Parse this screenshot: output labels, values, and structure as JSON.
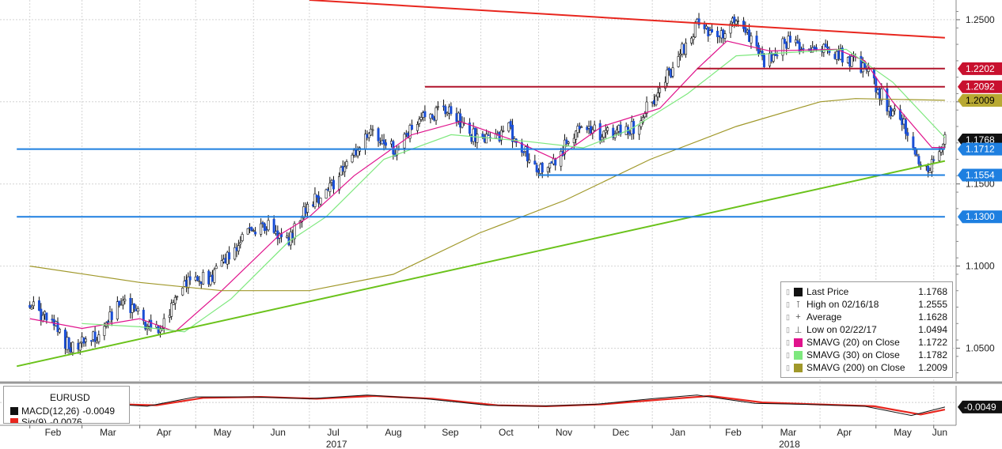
{
  "chart_data": {
    "type": "candlestick",
    "title": "",
    "x_months": [
      "Feb",
      "Mar",
      "Apr",
      "May",
      "Jun",
      "Jul",
      "Aug",
      "Sep",
      "Oct",
      "Nov",
      "Dec",
      "Jan",
      "Feb",
      "Mar",
      "Apr",
      "May",
      "Jun"
    ],
    "x_years": [
      {
        "label": "2017",
        "after": "Jul"
      },
      {
        "label": "2018",
        "after": "Mar"
      }
    ],
    "y_ticks": [
      "1.2500",
      "1.2000",
      "1.1500",
      "1.1000",
      "1.0500"
    ],
    "ylim": [
      1.03,
      1.262
    ],
    "price_path": [
      [
        "2017-02-01",
        1.077
      ],
      [
        "2017-02-15",
        1.062
      ],
      [
        "2017-02-22",
        1.051
      ],
      [
        "2017-03-08",
        1.056
      ],
      [
        "2017-03-24",
        1.08
      ],
      [
        "2017-04-03",
        1.066
      ],
      [
        "2017-04-12",
        1.062
      ],
      [
        "2017-04-26",
        1.09
      ],
      [
        "2017-05-10",
        1.093
      ],
      [
        "2017-05-26",
        1.118
      ],
      [
        "2017-06-05",
        1.126
      ],
      [
        "2017-06-20",
        1.116
      ],
      [
        "2017-06-30",
        1.138
      ],
      [
        "2017-07-10",
        1.144
      ],
      [
        "2017-07-28",
        1.172
      ],
      [
        "2017-08-04",
        1.181
      ],
      [
        "2017-08-17",
        1.17
      ],
      [
        "2017-08-30",
        1.191
      ],
      [
        "2017-09-15",
        1.195
      ],
      [
        "2017-09-25",
        1.18
      ],
      [
        "2017-10-06",
        1.176
      ],
      [
        "2017-10-16",
        1.183
      ],
      [
        "2017-10-30",
        1.162
      ],
      [
        "2017-11-07",
        1.16
      ],
      [
        "2017-11-25",
        1.188
      ],
      [
        "2017-12-05",
        1.18
      ],
      [
        "2017-12-22",
        1.185
      ],
      [
        "2018-01-04",
        1.205
      ],
      [
        "2018-01-15",
        1.227
      ],
      [
        "2018-01-25",
        1.246
      ],
      [
        "2018-02-05",
        1.24
      ],
      [
        "2018-02-16",
        1.252
      ],
      [
        "2018-03-01",
        1.224
      ],
      [
        "2018-03-15",
        1.238
      ],
      [
        "2018-03-28",
        1.232
      ],
      [
        "2018-04-09",
        1.23
      ],
      [
        "2018-04-25",
        1.22
      ],
      [
        "2018-05-07",
        1.198
      ],
      [
        "2018-05-15",
        1.188
      ],
      [
        "2018-05-24",
        1.164
      ],
      [
        "2018-05-29",
        1.156
      ],
      [
        "2018-06-07",
        1.178
      ]
    ],
    "series": [
      {
        "name": "SMAVG (20) on Close",
        "color": "#e0138c",
        "points": [
          [
            "2017-02-01",
            1.068
          ],
          [
            "2017-03-01",
            1.062
          ],
          [
            "2017-04-01",
            1.068
          ],
          [
            "2017-04-20",
            1.06
          ],
          [
            "2017-05-15",
            1.085
          ],
          [
            "2017-06-15",
            1.119
          ],
          [
            "2017-07-01",
            1.13
          ],
          [
            "2017-07-25",
            1.155
          ],
          [
            "2017-08-25",
            1.18
          ],
          [
            "2017-09-20",
            1.188
          ],
          [
            "2017-10-20",
            1.176
          ],
          [
            "2017-11-10",
            1.165
          ],
          [
            "2017-12-05",
            1.185
          ],
          [
            "2018-01-05",
            1.196
          ],
          [
            "2018-01-25",
            1.22
          ],
          [
            "2018-02-10",
            1.237
          ],
          [
            "2018-03-05",
            1.231
          ],
          [
            "2018-04-10",
            1.232
          ],
          [
            "2018-04-25",
            1.225
          ],
          [
            "2018-05-10",
            1.2
          ],
          [
            "2018-05-31",
            1.1722
          ],
          [
            "2018-06-07",
            1.1722
          ]
        ]
      },
      {
        "name": "SMAVG (30) on Close",
        "color": "#7ee87e",
        "points": [
          [
            "2017-03-01",
            1.065
          ],
          [
            "2017-04-01",
            1.063
          ],
          [
            "2017-04-25",
            1.06
          ],
          [
            "2017-05-20",
            1.08
          ],
          [
            "2017-06-20",
            1.115
          ],
          [
            "2017-07-10",
            1.13
          ],
          [
            "2017-08-10",
            1.165
          ],
          [
            "2017-09-15",
            1.18
          ],
          [
            "2017-10-25",
            1.176
          ],
          [
            "2017-11-25",
            1.172
          ],
          [
            "2017-12-20",
            1.183
          ],
          [
            "2018-01-20",
            1.205
          ],
          [
            "2018-02-15",
            1.228
          ],
          [
            "2018-03-15",
            1.23
          ],
          [
            "2018-04-15",
            1.232
          ],
          [
            "2018-05-10",
            1.212
          ],
          [
            "2018-06-07",
            1.1782
          ]
        ]
      },
      {
        "name": "SMAVG (200) on Close",
        "color": "#a0982a",
        "points": [
          [
            "2017-02-01",
            1.1
          ],
          [
            "2017-04-01",
            1.09
          ],
          [
            "2017-05-15",
            1.085
          ],
          [
            "2017-07-01",
            1.085
          ],
          [
            "2017-08-15",
            1.095
          ],
          [
            "2017-09-30",
            1.12
          ],
          [
            "2017-11-15",
            1.14
          ],
          [
            "2017-12-31",
            1.165
          ],
          [
            "2018-02-15",
            1.185
          ],
          [
            "2018-04-01",
            1.2
          ],
          [
            "2018-04-20",
            1.202
          ],
          [
            "2018-06-07",
            1.2009
          ]
        ]
      }
    ],
    "trend_lines": [
      {
        "color": "#e8261e",
        "points": [
          [
            "2017-07-01",
            1.262
          ],
          [
            "2018-06-07",
            1.239
          ]
        ]
      },
      {
        "color": "#6ac21a",
        "points": [
          [
            "2017-01-25",
            1.039
          ],
          [
            "2018-06-07",
            1.164
          ]
        ]
      },
      {
        "color": "#b0142c",
        "points": [
          [
            "2018-01-25",
            1.2202
          ],
          [
            "2018-06-07",
            1.2202
          ]
        ]
      },
      {
        "color": "#b0142c",
        "points": [
          [
            "2017-09-01",
            1.2092
          ],
          [
            "2018-06-07",
            1.2092
          ]
        ]
      },
      {
        "color": "#1e7fe0",
        "points": [
          [
            "2017-01-25",
            1.1712
          ],
          [
            "2018-06-07",
            1.1712
          ]
        ]
      },
      {
        "color": "#1e7fe0",
        "points": [
          [
            "2017-11-01",
            1.1554
          ],
          [
            "2018-06-07",
            1.1554
          ]
        ]
      },
      {
        "color": "#1e7fe0",
        "points": [
          [
            "2017-01-25",
            1.13
          ],
          [
            "2018-06-07",
            1.13
          ]
        ]
      }
    ],
    "price_tags": [
      {
        "label": "1.2202",
        "bg": "#c8102e",
        "fg": "#ffffff",
        "value": 1.2202
      },
      {
        "label": "1.2092",
        "bg": "#c8102e",
        "fg": "#ffffff",
        "value": 1.2092
      },
      {
        "label": "1.2009",
        "bg": "#b8a932",
        "fg": "#000000",
        "value": 1.2009
      },
      {
        "label": "1.1768",
        "bg": "#111111",
        "fg": "#ffffff",
        "value": 1.1768
      },
      {
        "label": "1.1712",
        "bg": "#1e7fe0",
        "fg": "#ffffff",
        "value": 1.1712
      },
      {
        "label": "1.1554",
        "bg": "#1e7fe0",
        "fg": "#ffffff",
        "value": 1.1554
      },
      {
        "label": "1.1300",
        "bg": "#1e7fe0",
        "fg": "#ffffff",
        "value": 1.13
      }
    ],
    "legend": {
      "placement": "bottom-right",
      "rows": [
        {
          "kind": "swatch",
          "color": "#111111",
          "label": "Last Price",
          "value": "1.1768"
        },
        {
          "kind": "glyph",
          "glyph": "⊺",
          "label": "High on 02/16/18",
          "value": "1.2555"
        },
        {
          "kind": "glyph",
          "glyph": "+",
          "label": "Average",
          "value": "1.1628"
        },
        {
          "kind": "glyph",
          "glyph": "⊥",
          "label": "Low on 02/22/17",
          "value": "1.0494"
        },
        {
          "kind": "swatch",
          "color": "#e0138c",
          "label": "SMAVG (20) on Close",
          "value": "1.1722"
        },
        {
          "kind": "swatch",
          "color": "#7ee87e",
          "label": "SMAVG (30) on Close",
          "value": "1.1782"
        },
        {
          "kind": "swatch",
          "color": "#a0982a",
          "label": "SMAVG (200) on Close",
          "value": "1.2009"
        }
      ]
    },
    "macd_panel": {
      "title": "EURUSD",
      "macd_label": "MACD(12,26)",
      "macd_value": "-0.0049",
      "signal_label": "Sig(9)",
      "signal_value": "-0.0076",
      "tag": "-0.0049",
      "macd_color": "#111111",
      "signal_color": "#e8261e",
      "macd_path": [
        [
          "2017-02-01",
          -0.002
        ],
        [
          "2017-03-01",
          0.0
        ],
        [
          "2017-04-05",
          -0.004
        ],
        [
          "2017-05-01",
          0.006
        ],
        [
          "2017-06-01",
          0.006
        ],
        [
          "2017-07-01",
          0.004
        ],
        [
          "2017-08-01",
          0.008
        ],
        [
          "2017-09-01",
          0.004
        ],
        [
          "2017-10-05",
          -0.003
        ],
        [
          "2017-11-01",
          -0.004
        ],
        [
          "2017-12-01",
          -0.002
        ],
        [
          "2018-01-01",
          0.004
        ],
        [
          "2018-01-25",
          0.008
        ],
        [
          "2018-02-25",
          -0.001
        ],
        [
          "2018-03-25",
          -0.002
        ],
        [
          "2018-04-25",
          -0.004
        ],
        [
          "2018-05-20",
          -0.014
        ],
        [
          "2018-06-07",
          -0.0049
        ]
      ],
      "signal_path": [
        [
          "2017-02-01",
          -0.001
        ],
        [
          "2017-03-05",
          -0.001
        ],
        [
          "2017-04-10",
          -0.003
        ],
        [
          "2017-05-05",
          0.005
        ],
        [
          "2017-06-05",
          0.006
        ],
        [
          "2017-07-05",
          0.004
        ],
        [
          "2017-08-05",
          0.007
        ],
        [
          "2017-09-05",
          0.004
        ],
        [
          "2017-10-10",
          -0.003
        ],
        [
          "2017-11-05",
          -0.004
        ],
        [
          "2017-12-05",
          -0.002
        ],
        [
          "2018-01-05",
          0.003
        ],
        [
          "2018-02-01",
          0.007
        ],
        [
          "2018-03-01",
          0.0
        ],
        [
          "2018-03-30",
          -0.002
        ],
        [
          "2018-04-30",
          -0.004
        ],
        [
          "2018-05-25",
          -0.013
        ],
        [
          "2018-06-07",
          -0.0076
        ]
      ]
    }
  }
}
